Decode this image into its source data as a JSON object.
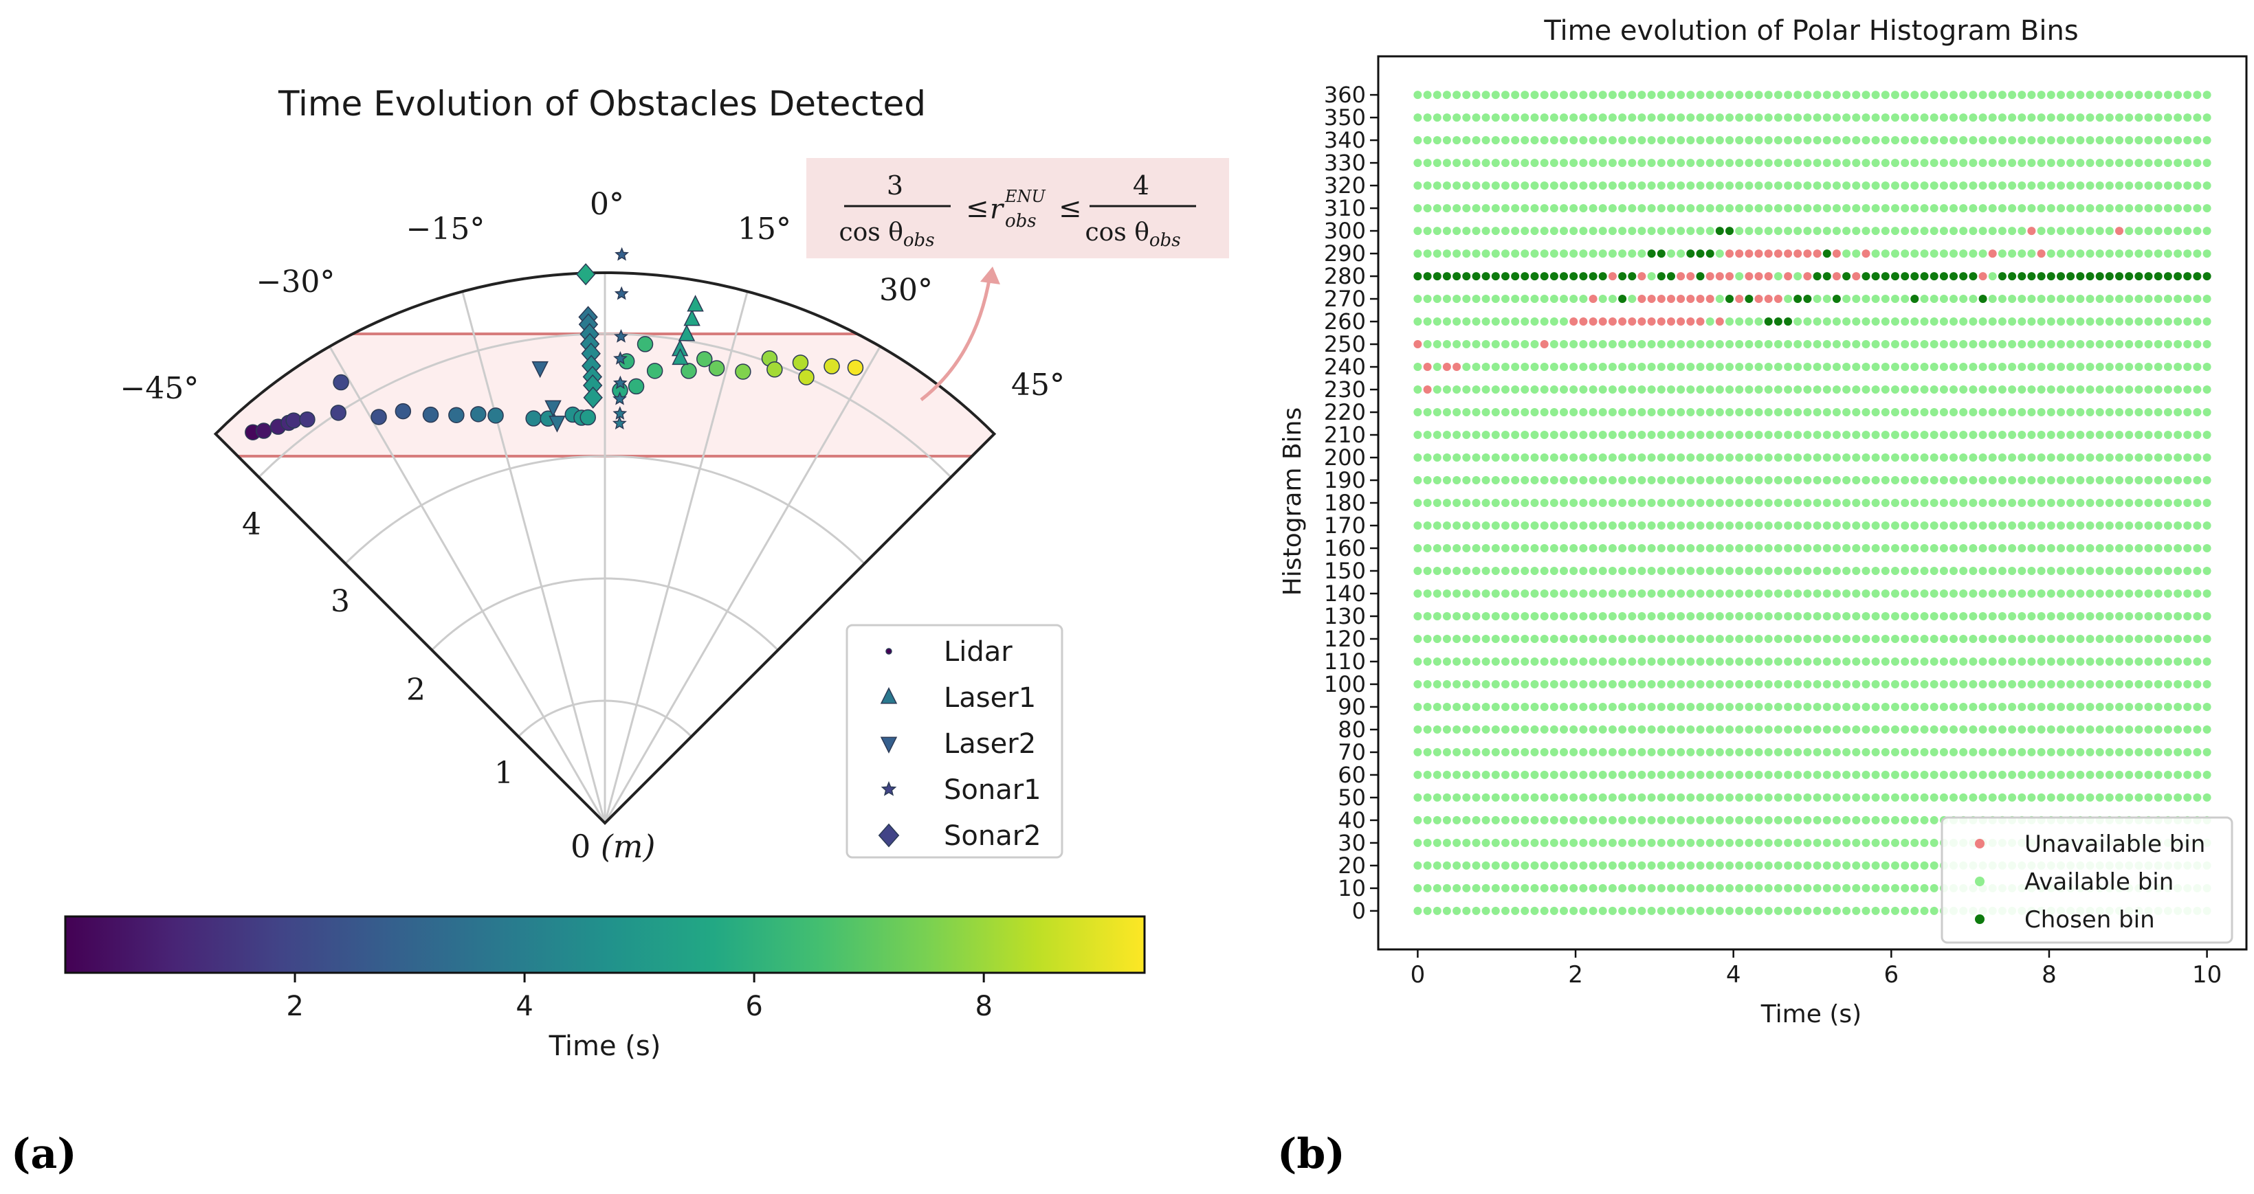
{
  "chart_data": [
    {
      "type": "scatter",
      "panel_label": "(a)",
      "title": "Time Evolution of Obstacles Detected",
      "projection": "polar-sector",
      "theta_range_deg": [
        -45,
        45
      ],
      "r_range_m": [
        0,
        4.5
      ],
      "angle_ticks": [
        "0°",
        "−15°",
        "15°",
        "−30°",
        "30°",
        "−45°",
        "45°"
      ],
      "range_ticks": [
        "1",
        "2",
        "3",
        "4"
      ],
      "origin_label": "0",
      "origin_unit": "(m)",
      "annotation": {
        "text": "3/cos θobs ≤ r_obs^ENU ≤ 4/cos θobs",
        "num_left": "3",
        "den_left": "cos θ",
        "den_sub": "obs",
        "mid_r": "r",
        "mid_sup": "ENU",
        "mid_sub": "obs",
        "le": "≤",
        "num_right": "4",
        "den_right": "cos θ"
      },
      "band_y_m": [
        3,
        4
      ],
      "colorbar": {
        "label": "Time (s)",
        "range": [
          0,
          9.4
        ],
        "ticks": [
          "2",
          "4",
          "6",
          "8"
        ],
        "colormap": "viridis"
      },
      "legend": {
        "entries": [
          "Lidar",
          "Laser1",
          "Laser2",
          "Sonar1",
          "Sonar2"
        ],
        "placement": "lower-right"
      },
      "series": [
        {
          "name": "Lidar",
          "marker": "circle",
          "points": [
            {
              "theta": -42.0,
              "r": 4.3,
              "t": 0.2
            },
            {
              "theta": -41.0,
              "r": 4.25,
              "t": 0.5
            },
            {
              "theta": -39.5,
              "r": 4.2,
              "t": 0.8
            },
            {
              "theta": -38.3,
              "r": 4.17,
              "t": 1.1
            },
            {
              "theta": -37.7,
              "r": 4.16,
              "t": 1.3
            },
            {
              "theta": -36.4,
              "r": 4.1,
              "t": 1.5
            },
            {
              "theta": -33.0,
              "r": 4.0,
              "t": 1.8
            },
            {
              "theta": -30.9,
              "r": 4.2,
              "t": 2.0
            },
            {
              "theta": -29.1,
              "r": 3.8,
              "t": 2.3
            },
            {
              "theta": -26.1,
              "r": 3.75,
              "t": 2.6
            },
            {
              "theta": -23.1,
              "r": 3.63,
              "t": 2.9
            },
            {
              "theta": -20.0,
              "r": 3.55,
              "t": 3.3
            },
            {
              "theta": -17.2,
              "r": 3.5,
              "t": 3.6
            },
            {
              "theta": -15.0,
              "r": 3.45,
              "t": 3.8
            },
            {
              "theta": -10.0,
              "r": 3.36,
              "t": 4.3
            },
            {
              "theta": -8.0,
              "r": 3.34,
              "t": 4.5
            },
            {
              "theta": -4.5,
              "r": 3.35,
              "t": 4.7
            },
            {
              "theta": -3.3,
              "r": 3.32,
              "t": 4.9
            },
            {
              "theta": -2.4,
              "r": 3.32,
              "t": 5.1
            },
            {
              "theta": 2.0,
              "r": 3.54,
              "t": 5.8
            },
            {
              "theta": 4.1,
              "r": 3.58,
              "t": 6.0
            },
            {
              "theta": 2.7,
              "r": 3.78,
              "t": 6.1
            },
            {
              "theta": 4.8,
              "r": 3.93,
              "t": 6.3
            },
            {
              "theta": 6.3,
              "r": 3.72,
              "t": 6.4
            },
            {
              "theta": 10.5,
              "r": 3.76,
              "t": 6.7
            },
            {
              "theta": 12.1,
              "r": 3.88,
              "t": 6.9
            },
            {
              "theta": 13.8,
              "r": 3.83,
              "t": 7.2
            },
            {
              "theta": 17.0,
              "r": 3.86,
              "t": 7.6
            },
            {
              "theta": 19.5,
              "r": 4.03,
              "t": 7.9
            },
            {
              "theta": 20.5,
              "r": 3.96,
              "t": 8.1
            },
            {
              "theta": 23.0,
              "r": 4.09,
              "t": 8.3
            },
            {
              "theta": 24.3,
              "r": 4.0,
              "t": 8.6
            },
            {
              "theta": 26.4,
              "r": 4.17,
              "t": 8.9
            },
            {
              "theta": 28.8,
              "r": 4.25,
              "t": 9.3
            }
          ]
        },
        {
          "name": "Laser1",
          "marker": "triangle-up",
          "points": [
            {
              "theta": 9.0,
              "r": 3.92,
              "t": 5.2
            },
            {
              "theta": 9.5,
              "r": 4.05,
              "t": 5.4
            },
            {
              "theta": 9.8,
              "r": 4.18,
              "t": 5.5
            },
            {
              "theta": 9.9,
              "r": 4.3,
              "t": 5.6
            },
            {
              "theta": 9.2,
              "r": 3.85,
              "t": 5.3
            }
          ]
        },
        {
          "name": "Laser2",
          "marker": "triangle-down",
          "points": [
            {
              "theta": -8.1,
              "r": 3.76,
              "t": 3.1
            },
            {
              "theta": -7.1,
              "r": 3.43,
              "t": 3.4
            },
            {
              "theta": -6.8,
              "r": 3.3,
              "t": 3.6
            }
          ]
        },
        {
          "name": "Sonar1",
          "marker": "star",
          "points": [
            {
              "theta": 1.7,
              "r": 4.65,
              "t": 2.9
            },
            {
              "theta": 1.8,
              "r": 4.33,
              "t": 3.0
            },
            {
              "theta": 1.9,
              "r": 3.98,
              "t": 3.2
            },
            {
              "theta": 1.9,
              "r": 3.8,
              "t": 3.3
            },
            {
              "theta": 2.0,
              "r": 3.6,
              "t": 3.5
            },
            {
              "theta": 2.0,
              "r": 3.47,
              "t": 3.6
            },
            {
              "theta": 2.1,
              "r": 3.35,
              "t": 3.8
            },
            {
              "theta": 2.1,
              "r": 3.27,
              "t": 3.9
            }
          ]
        },
        {
          "name": "Sonar2",
          "marker": "diamond",
          "points": [
            {
              "theta": -2.0,
              "r": 4.49,
              "t": 5.7
            },
            {
              "theta": -1.9,
              "r": 4.14,
              "t": 3.6
            },
            {
              "theta": -1.9,
              "r": 4.08,
              "t": 3.8
            },
            {
              "theta": -1.8,
              "r": 4.0,
              "t": 4.0
            },
            {
              "theta": -1.8,
              "r": 3.92,
              "t": 4.2
            },
            {
              "theta": -1.7,
              "r": 3.84,
              "t": 4.4
            },
            {
              "theta": -1.7,
              "r": 3.74,
              "t": 4.6
            },
            {
              "theta": -1.6,
              "r": 3.65,
              "t": 4.8
            },
            {
              "theta": -1.6,
              "r": 3.58,
              "t": 5.0
            },
            {
              "theta": -1.6,
              "r": 3.48,
              "t": 5.1
            }
          ]
        }
      ]
    },
    {
      "type": "scatter",
      "panel_label": "(b)",
      "title": "Time evolution of Polar Histogram Bins",
      "xlabel": "Time (s)",
      "ylabel": "Histogram Bins",
      "xlim": [
        -0.5,
        10.5
      ],
      "ylim": [
        -17,
        377
      ],
      "xticks": [
        0,
        2,
        4,
        6,
        8,
        10
      ],
      "yticks": [
        0,
        10,
        20,
        30,
        40,
        50,
        60,
        70,
        80,
        90,
        100,
        110,
        120,
        130,
        140,
        150,
        160,
        170,
        180,
        190,
        200,
        210,
        220,
        230,
        240,
        250,
        260,
        270,
        280,
        290,
        300,
        310,
        320,
        330,
        340,
        350,
        360
      ],
      "time_samples": {
        "start": 0,
        "end": 10,
        "count": 82
      },
      "bin_step": 10,
      "legend": {
        "entries": [
          "Unavailable bin",
          "Available bin",
          "Chosen bin"
        ],
        "placement": "lower-right"
      },
      "colors": {
        "Unavailable bin": "#ee7f7f",
        "Available bin": "#90ee90",
        "Chosen bin": "#0d7a0d"
      },
      "default_status": "Available bin",
      "series": [
        {
          "name": "Unavailable bin",
          "points": [
            [
              0.0,
              250
            ],
            [
              0.13,
              240
            ],
            [
              0.38,
              240
            ],
            [
              0.5,
              240
            ],
            [
              0.13,
              230
            ],
            [
              1.62,
              250
            ],
            [
              2.0,
              260
            ],
            [
              2.12,
              260
            ],
            [
              2.24,
              260
            ],
            [
              2.36,
              260
            ],
            [
              2.49,
              260
            ],
            [
              2.61,
              260
            ],
            [
              2.73,
              260
            ],
            [
              2.86,
              260
            ],
            [
              2.98,
              260
            ],
            [
              3.1,
              260
            ],
            [
              3.22,
              260
            ],
            [
              3.35,
              260
            ],
            [
              3.47,
              260
            ],
            [
              3.59,
              260
            ],
            [
              3.84,
              260
            ],
            [
              2.24,
              270
            ],
            [
              2.86,
              270
            ],
            [
              2.98,
              270
            ],
            [
              3.1,
              270
            ],
            [
              3.22,
              270
            ],
            [
              3.35,
              270
            ],
            [
              3.47,
              270
            ],
            [
              3.59,
              270
            ],
            [
              3.72,
              270
            ],
            [
              4.09,
              270
            ],
            [
              4.34,
              270
            ],
            [
              4.46,
              270
            ],
            [
              4.58,
              270
            ],
            [
              2.49,
              280
            ],
            [
              2.86,
              280
            ],
            [
              3.35,
              280
            ],
            [
              3.47,
              280
            ],
            [
              3.72,
              280
            ],
            [
              3.84,
              280
            ],
            [
              3.96,
              280
            ],
            [
              4.21,
              280
            ],
            [
              4.34,
              280
            ],
            [
              4.46,
              280
            ],
            [
              4.71,
              280
            ],
            [
              4.95,
              280
            ],
            [
              5.33,
              280
            ],
            [
              5.57,
              280
            ],
            [
              7.18,
              280
            ],
            [
              3.96,
              290
            ],
            [
              4.09,
              290
            ],
            [
              4.21,
              290
            ],
            [
              4.34,
              290
            ],
            [
              4.46,
              290
            ],
            [
              4.58,
              290
            ],
            [
              4.71,
              290
            ],
            [
              4.83,
              290
            ],
            [
              4.95,
              290
            ],
            [
              5.08,
              290
            ],
            [
              5.33,
              290
            ],
            [
              5.7,
              290
            ],
            [
              7.3,
              290
            ],
            [
              7.92,
              290
            ],
            [
              7.8,
              300
            ],
            [
              8.91,
              300
            ]
          ]
        },
        {
          "name": "Chosen bin",
          "points": [
            [
              3.84,
              300
            ],
            [
              3.96,
              300
            ],
            [
              2.98,
              290
            ],
            [
              3.1,
              290
            ],
            [
              3.47,
              290
            ],
            [
              3.59,
              290
            ],
            [
              3.72,
              290
            ],
            [
              5.2,
              290
            ],
            [
              0.0,
              280
            ],
            [
              0.13,
              280
            ],
            [
              0.25,
              280
            ],
            [
              0.38,
              280
            ],
            [
              0.5,
              280
            ],
            [
              0.62,
              280
            ],
            [
              0.75,
              280
            ],
            [
              0.87,
              280
            ],
            [
              0.99,
              280
            ],
            [
              1.11,
              280
            ],
            [
              1.24,
              280
            ],
            [
              1.36,
              280
            ],
            [
              1.48,
              280
            ],
            [
              1.6,
              280
            ],
            [
              1.73,
              280
            ],
            [
              1.85,
              280
            ],
            [
              1.97,
              280
            ],
            [
              2.09,
              280
            ],
            [
              2.22,
              280
            ],
            [
              2.34,
              280
            ],
            [
              2.61,
              280
            ],
            [
              2.73,
              280
            ],
            [
              3.1,
              280
            ],
            [
              3.22,
              280
            ],
            [
              3.59,
              280
            ],
            [
              5.08,
              280
            ],
            [
              5.2,
              280
            ],
            [
              5.45,
              280
            ],
            [
              5.7,
              280
            ],
            [
              5.82,
              280
            ],
            [
              5.94,
              280
            ],
            [
              6.07,
              280
            ],
            [
              6.19,
              280
            ],
            [
              6.31,
              280
            ],
            [
              6.43,
              280
            ],
            [
              6.56,
              280
            ],
            [
              6.68,
              280
            ],
            [
              6.8,
              280
            ],
            [
              6.93,
              280
            ],
            [
              7.05,
              280
            ],
            [
              7.42,
              280
            ],
            [
              7.54,
              280
            ],
            [
              7.67,
              280
            ],
            [
              7.79,
              280
            ],
            [
              7.91,
              280
            ],
            [
              8.03,
              280
            ],
            [
              8.16,
              280
            ],
            [
              8.28,
              280
            ],
            [
              8.4,
              280
            ],
            [
              8.53,
              280
            ],
            [
              8.65,
              280
            ],
            [
              8.77,
              280
            ],
            [
              8.89,
              280
            ],
            [
              9.02,
              280
            ],
            [
              9.14,
              280
            ],
            [
              9.26,
              280
            ],
            [
              9.39,
              280
            ],
            [
              9.51,
              280
            ],
            [
              9.63,
              280
            ],
            [
              9.75,
              280
            ],
            [
              9.88,
              280
            ],
            [
              10.0,
              280
            ],
            [
              2.61,
              270
            ],
            [
              3.96,
              270
            ],
            [
              4.21,
              270
            ],
            [
              4.83,
              270
            ],
            [
              4.95,
              270
            ],
            [
              5.3,
              270
            ],
            [
              6.35,
              270
            ],
            [
              7.21,
              270
            ],
            [
              4.46,
              260
            ],
            [
              4.58,
              260
            ],
            [
              4.71,
              260
            ]
          ]
        }
      ]
    }
  ]
}
